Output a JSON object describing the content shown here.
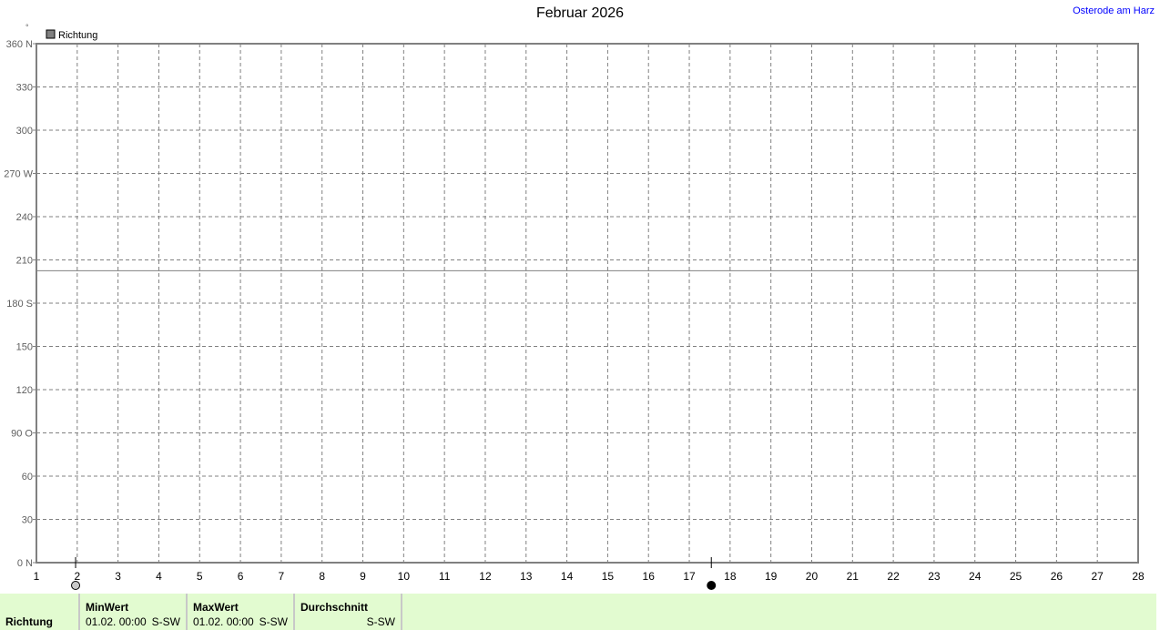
{
  "header": {
    "title": "Februar 2026",
    "location": "Osterode am Harz"
  },
  "chart_data": {
    "type": "line",
    "title": "Februar 2026",
    "ylabel_unit": "°",
    "legend": [
      {
        "name": "Richtung",
        "color": "#808080"
      }
    ],
    "legend_placement": "top-left",
    "xlim": [
      1,
      28
    ],
    "ylim": [
      0,
      360
    ],
    "x_ticks": [
      1,
      2,
      3,
      4,
      5,
      6,
      7,
      8,
      9,
      10,
      11,
      12,
      13,
      14,
      15,
      16,
      17,
      18,
      19,
      20,
      21,
      22,
      23,
      24,
      25,
      26,
      27,
      28
    ],
    "y_ticks": [
      {
        "v": 0,
        "l": "0   N"
      },
      {
        "v": 30,
        "l": "30"
      },
      {
        "v": 60,
        "l": "60"
      },
      {
        "v": 90,
        "l": "90  O"
      },
      {
        "v": 120,
        "l": "120"
      },
      {
        "v": 150,
        "l": "150"
      },
      {
        "v": 180,
        "l": "180 S"
      },
      {
        "v": 210,
        "l": "210"
      },
      {
        "v": 240,
        "l": "240"
      },
      {
        "v": 270,
        "l": "270 W"
      },
      {
        "v": 300,
        "l": "300"
      },
      {
        "v": 330,
        "l": "330"
      },
      {
        "v": 360,
        "l": "360 N"
      }
    ],
    "grid": true,
    "series": [
      {
        "name": "Richtung",
        "x": [
          1,
          28
        ],
        "y": [
          202.5,
          202.5
        ],
        "color": "#808080"
      }
    ],
    "moon_phases": [
      {
        "day": 1.96,
        "phase": "new-moon"
      },
      {
        "day": 17.54,
        "phase": "full-moon"
      }
    ]
  },
  "stats": {
    "row_label": "Richtung",
    "min": {
      "label": "MinWert",
      "date": "01.02.  00:00",
      "value": "S-SW"
    },
    "max": {
      "label": "MaxWert",
      "date": "01.02.  00:00",
      "value": "S-SW"
    },
    "avg": {
      "label": "Durchschnitt",
      "value": "S-SW"
    }
  }
}
